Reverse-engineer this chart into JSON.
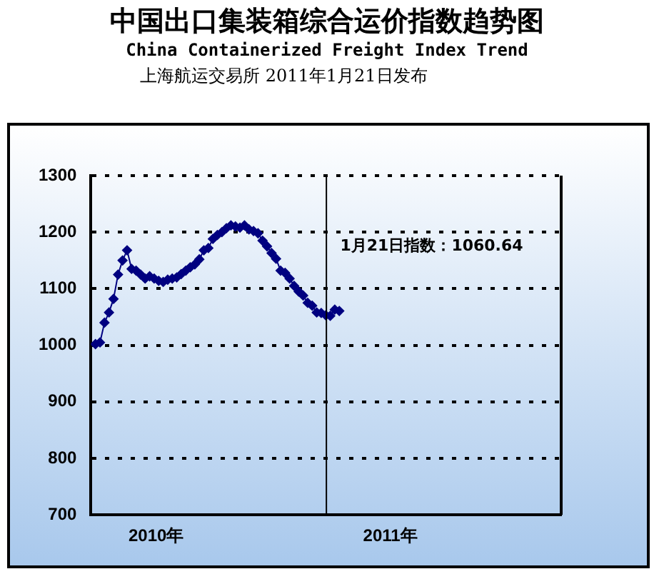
{
  "chart_data": {
    "type": "line",
    "title": "中国出口集装箱综合运价指数趋势图",
    "subtitle": "China Containerized Freight Index Trend",
    "annotations": [
      "上海航运交易所 2011年1月21日发布",
      "1月21日指数：1060.64"
    ],
    "x": [
      "2010-01-08",
      "2010-01-15",
      "2010-01-22",
      "2010-01-29",
      "2010-02-05",
      "2010-02-12",
      "2010-02-19",
      "2010-02-26",
      "2010-03-05",
      "2010-03-12",
      "2010-03-19",
      "2010-03-26",
      "2010-04-02",
      "2010-04-09",
      "2010-04-16",
      "2010-04-23",
      "2010-04-30",
      "2010-05-07",
      "2010-05-14",
      "2010-05-21",
      "2010-05-28",
      "2010-06-04",
      "2010-06-11",
      "2010-06-18",
      "2010-06-25",
      "2010-07-02",
      "2010-07-09",
      "2010-07-16",
      "2010-07-23",
      "2010-07-30",
      "2010-08-06",
      "2010-08-13",
      "2010-08-20",
      "2010-08-27",
      "2010-09-03",
      "2010-09-10",
      "2010-09-17",
      "2010-09-24",
      "2010-10-01",
      "2010-10-08",
      "2010-10-15",
      "2010-10-22",
      "2010-10-29",
      "2010-11-05",
      "2010-11-12",
      "2010-11-19",
      "2010-11-26",
      "2010-12-03",
      "2010-12-10",
      "2010-12-17",
      "2010-12-24",
      "2010-12-31",
      "2011-01-07",
      "2011-01-14",
      "2011-01-21"
    ],
    "series": [
      {
        "color": "#000080",
        "values": [
          1002,
          1005,
          1040,
          1058,
          1082,
          1125,
          1150,
          1168,
          1135,
          1132,
          1125,
          1118,
          1122,
          1118,
          1114,
          1112,
          1116,
          1118,
          1120,
          1126,
          1132,
          1138,
          1143,
          1152,
          1168,
          1172,
          1188,
          1195,
          1200,
          1207,
          1212,
          1210,
          1208,
          1212,
          1205,
          1202,
          1198,
          1185,
          1175,
          1163,
          1153,
          1132,
          1128,
          1118,
          1105,
          1095,
          1088,
          1075,
          1070,
          1058,
          1057,
          1053,
          1052,
          1063,
          1060.64
        ]
      }
    ],
    "xlim": [
      "2010-01-01",
      "2011-12-31"
    ],
    "xticks": [
      {
        "value": "2010-04-12",
        "label": "2010年"
      },
      {
        "value": "2011-04-10",
        "label": "2011年"
      }
    ],
    "ylim": [
      700,
      1300
    ],
    "yticks": [
      700,
      800,
      900,
      1000,
      1100,
      1200,
      1300
    ],
    "ref_lines": [
      {
        "axis": "x",
        "value": "2011-01-01",
        "color": "#000000"
      }
    ],
    "grid": "y",
    "legend": false,
    "marker": "diamond",
    "line_style": "solid"
  }
}
